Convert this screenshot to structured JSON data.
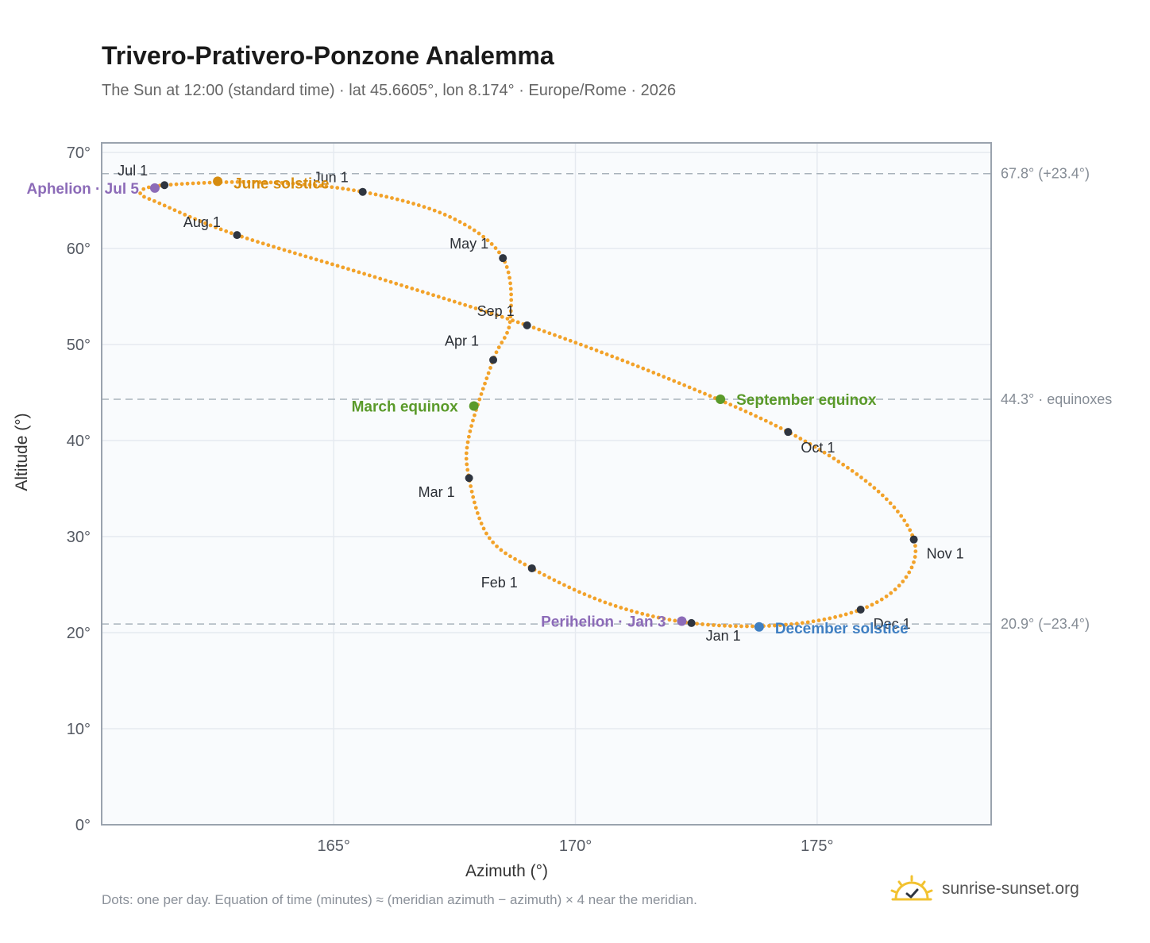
{
  "title": "Trivero-Prativero-Ponzone Analemma",
  "subtitle": "The Sun at 12:00 (standard time) · lat 45.6605°, lon 8.174° · Europe/Rome · 2026",
  "footnote": "Dots: one per day. Equation of time (minutes) ≈ (meridian azimuth − azimuth) × 4 near the meridian.",
  "brand": "sunrise-sunset.org",
  "colors": {
    "curve": "#f2a22a",
    "month_dot": "#2f3540",
    "equinox": "#5a9a2a",
    "june_solstice": "#d68c0f",
    "december_solstice": "#3f7fc2",
    "apsis": "#8c6bb8",
    "plot_bg": "#f9fbfd",
    "grid": "#e6eaf0",
    "axis": "#9aa3ae"
  },
  "chart_data": {
    "type": "scatter",
    "xlabel": "Azimuth (°)",
    "ylabel": "Altitude (°)",
    "xlim": [
      160.2,
      178.6
    ],
    "ylim": [
      0,
      71
    ],
    "x_ticks": [
      165,
      170,
      175
    ],
    "x_tick_labels": [
      "165°",
      "170°",
      "175°"
    ],
    "y_ticks": [
      0,
      10,
      20,
      30,
      40,
      50,
      60,
      70
    ],
    "y_tick_labels": [
      "0°",
      "10°",
      "20°",
      "30°",
      "40°",
      "50°",
      "60°",
      "70°"
    ],
    "grid": true,
    "reference_lines": [
      {
        "y": 67.8,
        "label": "67.8° (+23.4°)"
      },
      {
        "y": 44.3,
        "label": "44.3° · equinoxes"
      },
      {
        "y": 20.9,
        "label": "20.9° (−23.4°)"
      }
    ],
    "month_markers": [
      {
        "label": "Jan 1",
        "az": 172.4,
        "alt": 21.0
      },
      {
        "label": "Feb 1",
        "az": 169.1,
        "alt": 26.7
      },
      {
        "label": "Mar 1",
        "az": 167.8,
        "alt": 36.1
      },
      {
        "label": "Apr 1",
        "az": 168.3,
        "alt": 48.4
      },
      {
        "label": "May 1",
        "az": 168.5,
        "alt": 59.0
      },
      {
        "label": "Jun 1",
        "az": 165.6,
        "alt": 65.9
      },
      {
        "label": "Jul 1",
        "az": 161.5,
        "alt": 66.6
      },
      {
        "label": "Aug 1",
        "az": 163.0,
        "alt": 61.4
      },
      {
        "label": "Sep 1",
        "az": 169.0,
        "alt": 52.0
      },
      {
        "label": "Oct 1",
        "az": 174.4,
        "alt": 40.9
      },
      {
        "label": "Nov 1",
        "az": 177.0,
        "alt": 29.7
      },
      {
        "label": "Dec 1",
        "az": 175.9,
        "alt": 22.4
      }
    ],
    "events": [
      {
        "label": "June solstice",
        "az": 162.6,
        "alt": 67.0,
        "kind": "june_solstice"
      },
      {
        "label": "Aphelion · Jul 5",
        "az": 161.3,
        "alt": 66.3,
        "kind": "apsis"
      },
      {
        "label": "March equinox",
        "az": 167.9,
        "alt": 43.6,
        "kind": "equinox"
      },
      {
        "label": "September equinox",
        "az": 173.0,
        "alt": 44.3,
        "kind": "equinox"
      },
      {
        "label": "Perihelion · Jan 3",
        "az": 172.2,
        "alt": 21.2,
        "kind": "apsis"
      },
      {
        "label": "December solstice",
        "az": 173.8,
        "alt": 20.6,
        "kind": "december_solstice"
      }
    ],
    "curve_knots": [
      [
        172.4,
        21.0
      ],
      [
        170.7,
        23.0
      ],
      [
        169.1,
        26.7
      ],
      [
        168.2,
        30.0
      ],
      [
        167.8,
        36.1
      ],
      [
        167.8,
        40.5
      ],
      [
        168.3,
        48.4
      ],
      [
        168.65,
        52.5
      ],
      [
        168.5,
        59.0
      ],
      [
        167.4,
        63.3
      ],
      [
        165.6,
        65.9
      ],
      [
        163.6,
        66.9
      ],
      [
        161.5,
        66.6
      ],
      [
        161.0,
        65.8
      ],
      [
        161.4,
        64.7
      ],
      [
        163.0,
        61.4
      ],
      [
        166.0,
        56.8
      ],
      [
        169.0,
        52.0
      ],
      [
        171.8,
        46.7
      ],
      [
        174.4,
        40.9
      ],
      [
        176.2,
        35.0
      ],
      [
        177.0,
        29.7
      ],
      [
        176.8,
        25.5
      ],
      [
        175.9,
        22.4
      ],
      [
        174.3,
        20.8
      ],
      [
        172.4,
        21.0
      ]
    ]
  }
}
